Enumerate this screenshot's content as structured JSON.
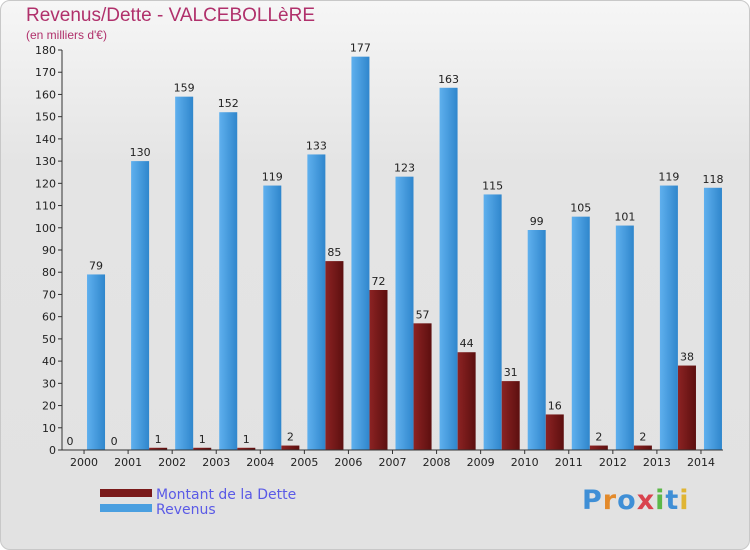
{
  "chart_data": {
    "type": "bar",
    "title": "Revenus/Dette - VALCEBOLLèRE",
    "subtitle": "(en milliers d'€)",
    "xlabel": "",
    "ylabel": "",
    "ylim": [
      0,
      180
    ],
    "yticks": [
      "0",
      "10",
      "20",
      "30",
      "40",
      "50",
      "60",
      "70",
      "80",
      "90",
      "100",
      "110",
      "120",
      "130",
      "140",
      "150",
      "160",
      "170",
      "180"
    ],
    "grid": false,
    "legend_position": "bottom-left",
    "categories": [
      "2000",
      "2001",
      "2002",
      "2003",
      "2004",
      "2005",
      "2006",
      "2007",
      "2008",
      "2009",
      "2010",
      "2011",
      "2012",
      "2013",
      "2014"
    ],
    "series": [
      {
        "name": "Montant de la Dette",
        "color": "#7a1a1a",
        "values": [
          0,
          0,
          1,
          1,
          1,
          2,
          85,
          72,
          57,
          44,
          31,
          16,
          2,
          2,
          38
        ]
      },
      {
        "name": "Revenus",
        "color": "#4a9fe0",
        "values": [
          79,
          130,
          159,
          152,
          119,
          133,
          177,
          123,
          163,
          115,
          99,
          105,
          101,
          119,
          118
        ]
      }
    ]
  },
  "logo": {
    "text": "Proxiti",
    "colors": [
      "#3f8fd6",
      "#e38a2b",
      "#3f8fd6",
      "#d9434e",
      "#5cb848",
      "#3f8fd6",
      "#e0b534"
    ]
  }
}
